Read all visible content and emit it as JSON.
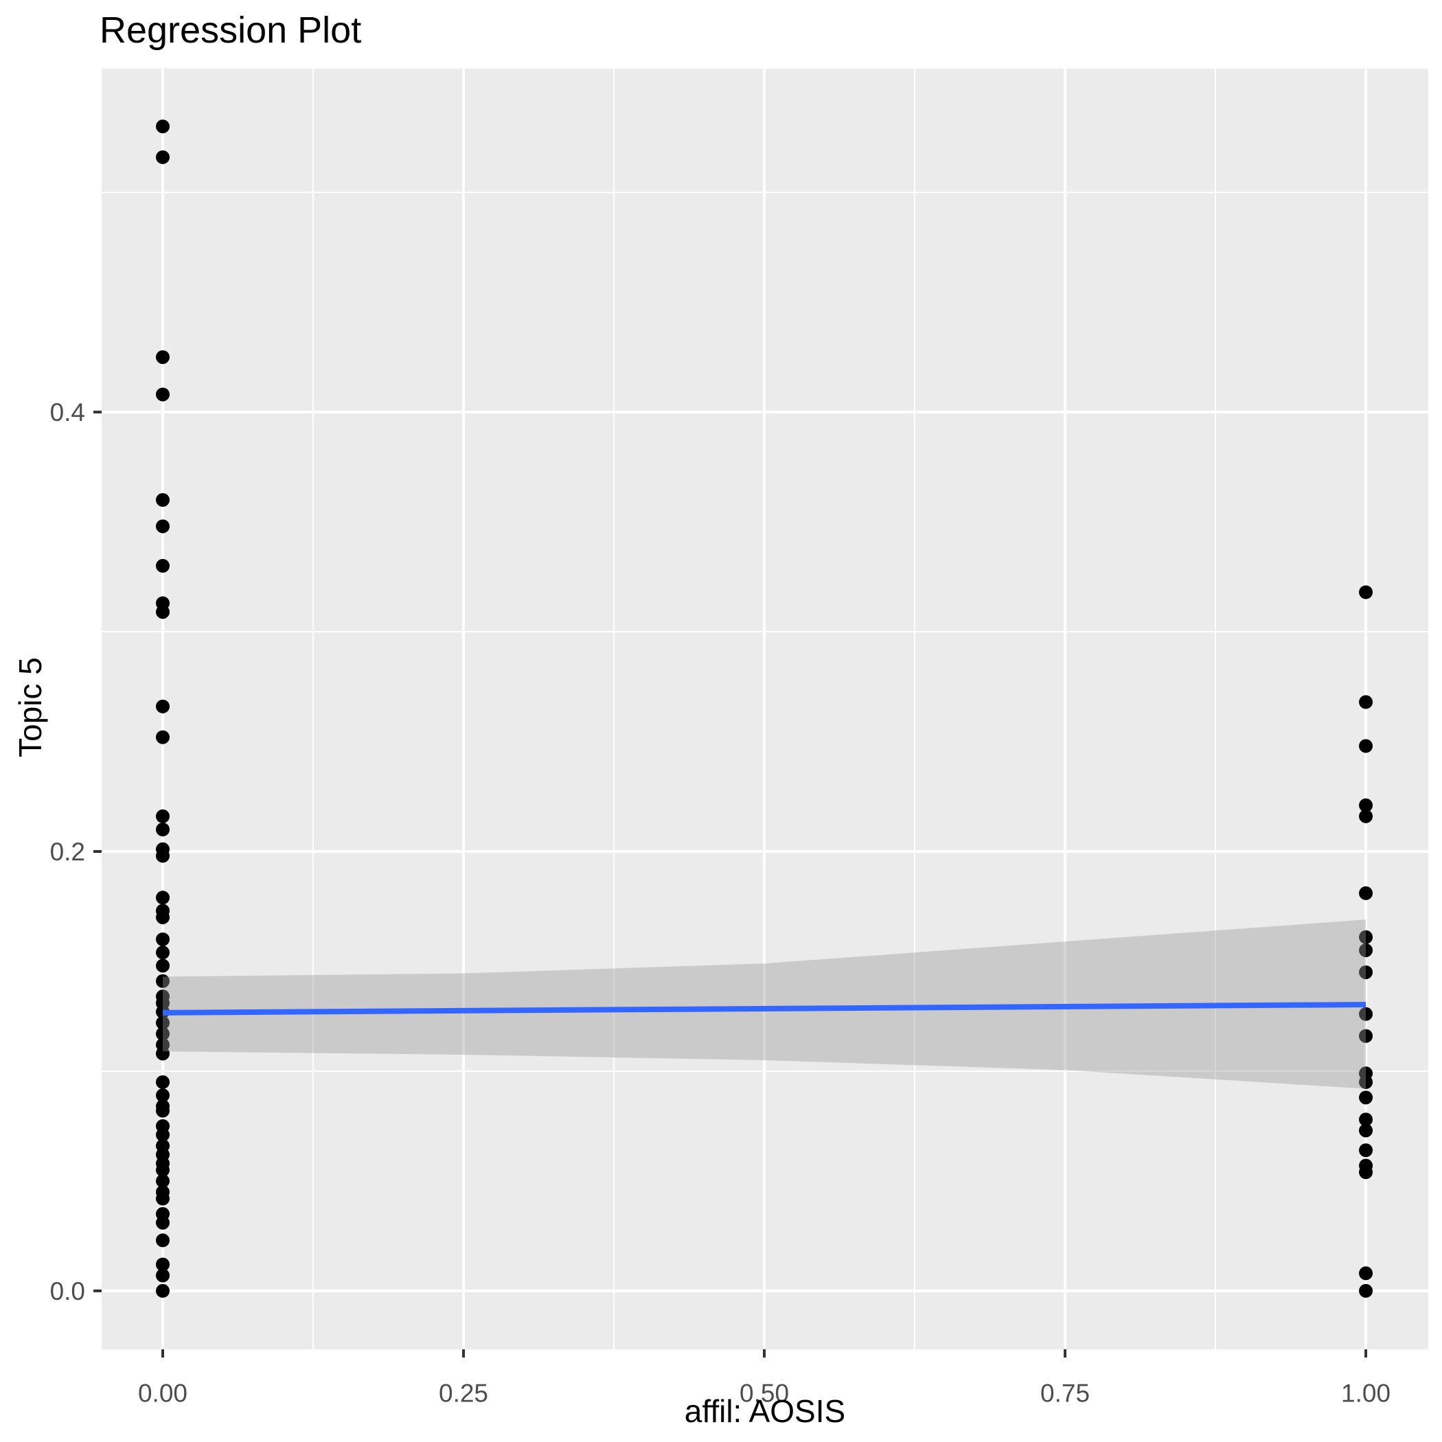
{
  "header": {
    "title": "Regression Plot"
  },
  "chart_data": {
    "type": "scatter",
    "title": "Regression Plot",
    "xlabel": "affil: AOSIS",
    "ylabel": "Topic 5",
    "x_range": [
      -0.0508,
      1.0519
    ],
    "y_range": [
      -0.0266,
      0.5563
    ],
    "grid": true,
    "legend": "none",
    "panel_bg": "#EBEBEB",
    "grid_color": "#FFFFFF",
    "tick_mark_color": "#333333",
    "tick_label_color": "#4D4D4D",
    "x_ticks": {
      "values": [
        0,
        0.25,
        0.5,
        0.75,
        1
      ],
      "labels": [
        "0.00",
        "0.25",
        "0.50",
        "0.75",
        "1.00"
      ]
    },
    "y_ticks": {
      "values": [
        0,
        0.2,
        0.4
      ],
      "labels": [
        "0.0",
        "0.2",
        "0.4"
      ]
    },
    "x_minor": [
      0.125,
      0.375,
      0.625,
      0.875
    ],
    "y_minor": [
      0.1,
      0.3,
      0.5
    ],
    "series": [
      {
        "name": "observations",
        "color": "#000000",
        "marker_radius": 10,
        "points": [
          [
            0,
            0.53
          ],
          [
            0,
            0.516
          ],
          [
            0,
            0.425
          ],
          [
            0,
            0.408
          ],
          [
            0,
            0.36
          ],
          [
            0,
            0.348
          ],
          [
            0,
            0.33
          ],
          [
            0,
            0.313
          ],
          [
            0,
            0.309
          ],
          [
            0,
            0.266
          ],
          [
            0,
            0.252
          ],
          [
            0,
            0.216
          ],
          [
            0,
            0.21
          ],
          [
            0,
            0.201
          ],
          [
            0,
            0.198
          ],
          [
            0,
            0.179
          ],
          [
            0,
            0.173
          ],
          [
            0,
            0.17
          ],
          [
            0,
            0.16
          ],
          [
            0,
            0.154
          ],
          [
            0,
            0.148
          ],
          [
            0,
            0.141
          ],
          [
            0,
            0.134
          ],
          [
            0,
            0.131
          ],
          [
            0,
            0.127
          ],
          [
            0,
            0.122
          ],
          [
            0,
            0.117
          ],
          [
            0,
            0.112
          ],
          [
            0,
            0.108
          ],
          [
            0,
            0.095
          ],
          [
            0,
            0.089
          ],
          [
            0,
            0.084
          ],
          [
            0,
            0.082
          ],
          [
            0,
            0.075
          ],
          [
            0,
            0.071
          ],
          [
            0,
            0.066
          ],
          [
            0,
            0.062
          ],
          [
            0,
            0.058
          ],
          [
            0,
            0.055
          ],
          [
            0,
            0.05
          ],
          [
            0,
            0.045
          ],
          [
            0,
            0.042
          ],
          [
            0,
            0.035
          ],
          [
            0,
            0.031
          ],
          [
            0,
            0.023
          ],
          [
            0,
            0.012
          ],
          [
            0,
            0.007
          ],
          [
            0,
            0.0
          ],
          [
            1,
            0.318
          ],
          [
            1,
            0.268
          ],
          [
            1,
            0.248
          ],
          [
            1,
            0.221
          ],
          [
            1,
            0.216
          ],
          [
            1,
            0.181
          ],
          [
            1,
            0.161
          ],
          [
            1,
            0.155
          ],
          [
            1,
            0.145
          ],
          [
            1,
            0.126
          ],
          [
            1,
            0.116
          ],
          [
            1,
            0.099
          ],
          [
            1,
            0.095
          ],
          [
            1,
            0.088
          ],
          [
            1,
            0.078
          ],
          [
            1,
            0.073
          ],
          [
            1,
            0.064
          ],
          [
            1,
            0.057
          ],
          [
            1,
            0.054
          ],
          [
            1,
            0.008
          ],
          [
            1,
            0.0
          ]
        ]
      }
    ],
    "regression_line": {
      "color": "#3366FF",
      "width": 8,
      "x": [
        0,
        1
      ],
      "y": [
        0.1266,
        0.1303
      ]
    },
    "confidence_band": {
      "color": "#999999",
      "opacity": 0.4,
      "x": [
        0,
        0.25,
        0.5,
        0.75,
        1
      ],
      "upper": [
        0.143,
        0.1445,
        0.149,
        0.159,
        0.169
      ],
      "lower": [
        0.109,
        0.1075,
        0.105,
        0.1005,
        0.092
      ]
    }
  }
}
